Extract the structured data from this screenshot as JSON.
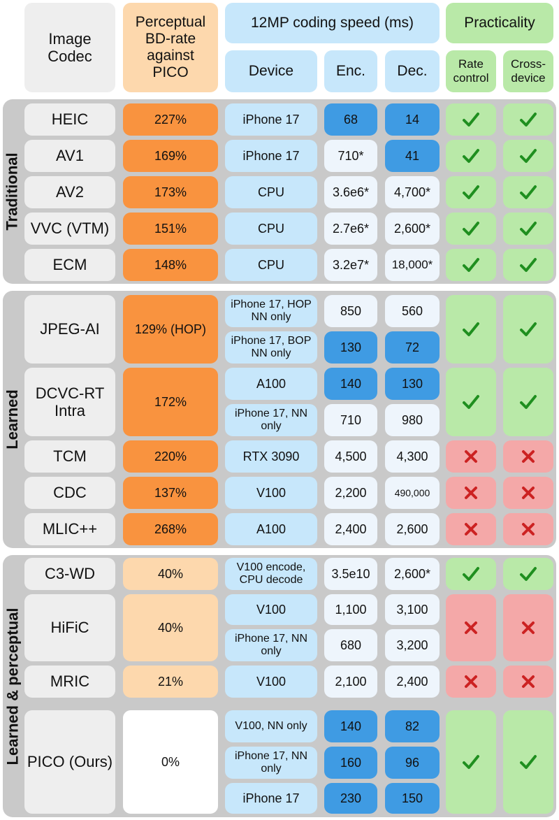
{
  "header": {
    "codec": "Image Codec",
    "bd_rate": "Perceptual BD-rate against PICO",
    "speed": "12MP coding speed (ms)",
    "device": "Device",
    "enc": "Enc.",
    "dec": "Dec.",
    "practicality": "Practicality",
    "rate_control": "Rate control",
    "cross_device": "Cross-device"
  },
  "groups": {
    "traditional": "Traditional",
    "learned": "Learned",
    "perceptual": "Learned & perceptual"
  },
  "symbols": {
    "yes": "✓",
    "no": "✗"
  },
  "colors": {
    "bd_strong": "#f9933f",
    "bd_light": "#fdd8ad",
    "device": "#c7e7fb",
    "speed": "#eef5fc",
    "speed_fast": "#3f9be3",
    "yes": "#b9e9a8",
    "no": "#f4a8a8",
    "check": "#1f8f1f",
    "cross": "#cc2222"
  },
  "rows": {
    "heic": {
      "name": "HEIC",
      "bd": "227%",
      "device": "iPhone 17",
      "enc": "68",
      "dec": "14"
    },
    "av1": {
      "name": "AV1",
      "bd": "169%",
      "device": "iPhone 17",
      "enc": "710*",
      "dec": "41"
    },
    "av2": {
      "name": "AV2",
      "bd": "173%",
      "device": "CPU",
      "enc": "3.6e6*",
      "dec": "4,700*"
    },
    "vvc": {
      "name": "VVC (VTM)",
      "bd": "151%",
      "device": "CPU",
      "enc": "2.7e6*",
      "dec": "2,600*"
    },
    "ecm": {
      "name": "ECM",
      "bd": "148%",
      "device": "CPU",
      "enc": "3.2e7*",
      "dec": "18,000*"
    },
    "jpegai": {
      "name": "JPEG-AI",
      "bd": "129% (HOP)",
      "device1": "iPhone 17, HOP NN only",
      "enc1": "850",
      "dec1": "560",
      "device2": "iPhone 17, BOP NN only",
      "enc2": "130",
      "dec2": "72"
    },
    "dcvc": {
      "name": "DCVC-RT Intra",
      "bd": "172%",
      "device1": "A100",
      "enc1": "140",
      "dec1": "130",
      "device2": "iPhone 17, NN only",
      "enc2": "710",
      "dec2": "980"
    },
    "tcm": {
      "name": "TCM",
      "bd": "220%",
      "device": "RTX 3090",
      "enc": "4,500",
      "dec": "4,300"
    },
    "cdc": {
      "name": "CDC",
      "bd": "137%",
      "device": "V100",
      "enc": "2,200",
      "dec": "490,000"
    },
    "mlic": {
      "name": "MLIC++",
      "bd": "268%",
      "device": "A100",
      "enc": "2,400",
      "dec": "2,600"
    },
    "c3wd": {
      "name": "C3-WD",
      "bd": "40%",
      "device": "V100 encode, CPU decode",
      "enc": "3.5e10",
      "dec": "2,600*"
    },
    "hific": {
      "name": "HiFiC",
      "bd": "40%",
      "device1": "V100",
      "enc1": "1,100",
      "dec1": "3,100",
      "device2": "iPhone 17, NN only",
      "enc2": "680",
      "dec2": "3,200"
    },
    "mric": {
      "name": "MRIC",
      "bd": "21%",
      "device": "V100",
      "enc": "2,100",
      "dec": "2,400"
    },
    "pico": {
      "name": "PICO (Ours)",
      "bd": "0%",
      "device1": "V100, NN only",
      "enc1": "140",
      "dec1": "82",
      "device2": "iPhone 17, NN only",
      "enc2": "160",
      "dec2": "96",
      "device3": "iPhone 17",
      "enc3": "230",
      "dec3": "150"
    }
  }
}
